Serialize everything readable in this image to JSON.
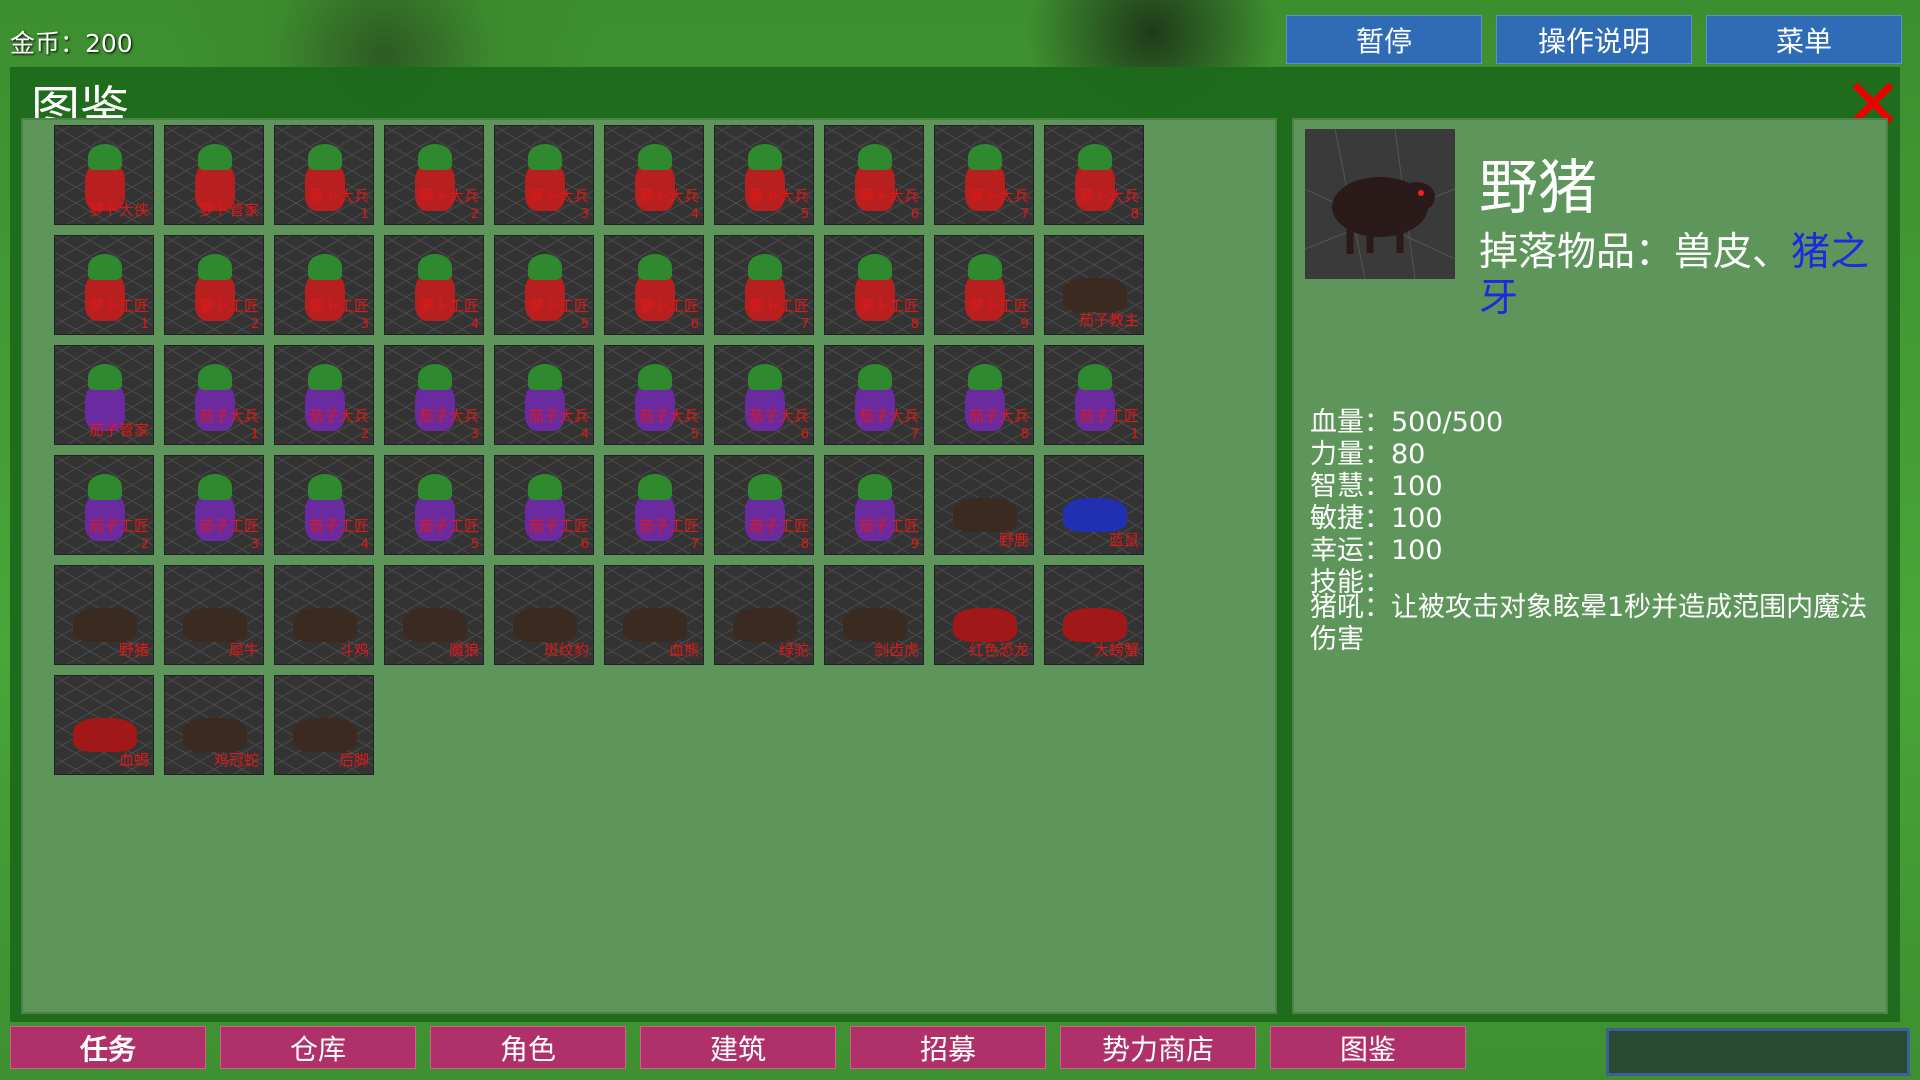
{
  "hud": {
    "gold": "金币：200",
    "buttons": [
      "暂停",
      "操作说明",
      "菜单"
    ]
  },
  "codex": {
    "title": "图鉴",
    "items": [
      {
        "name": "萝卜大侠"
      },
      {
        "name": "萝卜管家"
      },
      {
        "name": "萝卜大兵",
        "num": 1
      },
      {
        "name": "萝卜大兵",
        "num": 2
      },
      {
        "name": "萝卜大兵",
        "num": 3
      },
      {
        "name": "萝卜大兵",
        "num": 4
      },
      {
        "name": "萝卜大兵",
        "num": 5
      },
      {
        "name": "萝卜大兵",
        "num": 6
      },
      {
        "name": "萝卜大兵",
        "num": 7
      },
      {
        "name": "萝卜大兵",
        "num": 8
      },
      {
        "name": "萝卜工匠",
        "num": 1
      },
      {
        "name": "萝卜工匠",
        "num": 2
      },
      {
        "name": "萝卜工匠",
        "num": 3
      },
      {
        "name": "萝卜工匠",
        "num": 4
      },
      {
        "name": "萝卜工匠",
        "num": 5
      },
      {
        "name": "萝卜工匠",
        "num": 6
      },
      {
        "name": "萝卜工匠",
        "num": 7
      },
      {
        "name": "萝卜工匠",
        "num": 8
      },
      {
        "name": "萝卜工匠",
        "num": 9
      },
      {
        "name": "茄子教主"
      },
      {
        "name": "茄子管家"
      },
      {
        "name": "茄子大兵",
        "num": 1
      },
      {
        "name": "茄子大兵",
        "num": 2
      },
      {
        "name": "茄子大兵",
        "num": 3
      },
      {
        "name": "茄子大兵",
        "num": 4
      },
      {
        "name": "茄子大兵",
        "num": 5
      },
      {
        "name": "茄子大兵",
        "num": 6
      },
      {
        "name": "茄子大兵",
        "num": 7
      },
      {
        "name": "茄子大兵",
        "num": 8
      },
      {
        "name": "茄子工匠",
        "num": 1
      },
      {
        "name": "茄子工匠",
        "num": 2
      },
      {
        "name": "茄子工匠",
        "num": 3
      },
      {
        "name": "茄子工匠",
        "num": 4
      },
      {
        "name": "茄子工匠",
        "num": 5
      },
      {
        "name": "茄子工匠",
        "num": 6
      },
      {
        "name": "茄子工匠",
        "num": 7
      },
      {
        "name": "茄子工匠",
        "num": 8
      },
      {
        "name": "茄子工匠",
        "num": 9
      },
      {
        "name": "野鹿"
      },
      {
        "name": "蓝鼠"
      },
      {
        "name": "野猪"
      },
      {
        "name": "犀牛"
      },
      {
        "name": "斗鸡"
      },
      {
        "name": "魔狼"
      },
      {
        "name": "斑纹豹"
      },
      {
        "name": "血熊"
      },
      {
        "name": "绿驼"
      },
      {
        "name": "剑齿虎"
      },
      {
        "name": "红色恐龙"
      },
      {
        "name": "大螃蟹"
      },
      {
        "name": "血蝎"
      },
      {
        "name": "鸡冠蛇"
      },
      {
        "name": "后脚"
      }
    ],
    "detail": {
      "name": "野猪",
      "drop_label": "掉落物品：兽皮、",
      "drop_link": "猪之牙",
      "stats": [
        {
          "label": "血量：",
          "value": "500/500"
        },
        {
          "label": "力量：",
          "value": 80
        },
        {
          "label": "智慧：",
          "value": 100
        },
        {
          "label": "敏捷：",
          "value": 100
        },
        {
          "label": "幸运：",
          "value": 100
        },
        {
          "label": "技能：",
          "value": ""
        }
      ],
      "skill": "猪吼：让被攻击对象眩晕1秒并造成范围内魔法伤害"
    }
  },
  "tabs": [
    "任务",
    "仓库",
    "角色",
    "建筑",
    "招募",
    "势力商店",
    "图鉴"
  ]
}
